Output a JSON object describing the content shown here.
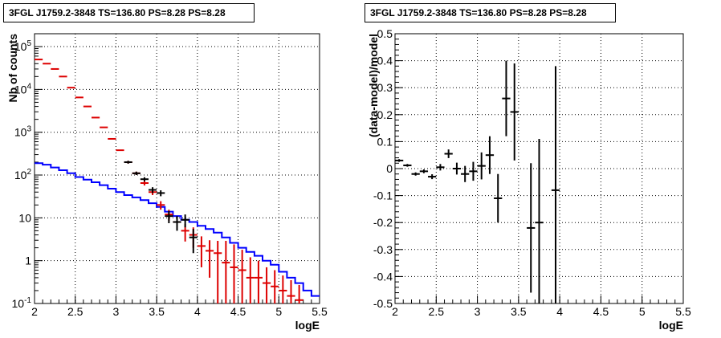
{
  "chart_data": [
    {
      "type": "line",
      "title": "3FGL J1759.2-3848 TS=136.80 PS=8.28 PS=8.28",
      "xlabel": "logE",
      "ylabel": "Nb of counts",
      "xlim": [
        2,
        5.5
      ],
      "ylim": [
        0.1,
        200000
      ],
      "yscale": "log",
      "grid": true,
      "x_ticks": [
        "2",
        "2.5",
        "3",
        "3.5",
        "4",
        "4.5",
        "5",
        "5.5"
      ],
      "y_ticks": [
        "10^{-1}",
        "1",
        "10",
        "10^{2}",
        "10^{3}",
        "10^{4}",
        "10^{5}"
      ],
      "series": [
        {
          "role": "model-step",
          "color": "#0000ff",
          "bin_edges": [
            2.0,
            2.1,
            2.2,
            2.3,
            2.4,
            2.5,
            2.6,
            2.7,
            2.8,
            2.9,
            3.0,
            3.1,
            3.2,
            3.3,
            3.4,
            3.5,
            3.6,
            3.7,
            3.8,
            3.9,
            4.0,
            4.1,
            4.2,
            4.3,
            4.4,
            4.5,
            4.6,
            4.7,
            4.8,
            4.9,
            5.0,
            5.1,
            5.2,
            5.3,
            5.4,
            5.5
          ],
          "values": [
            190,
            175,
            150,
            130,
            110,
            90,
            78,
            68,
            58,
            48,
            40,
            34,
            30,
            26,
            22,
            18,
            14,
            11,
            9,
            8,
            6.5,
            5.5,
            4.5,
            3.5,
            2.6,
            2.0,
            1.6,
            1.3,
            1.0,
            0.8,
            0.55,
            0.4,
            0.3,
            0.2,
            0.15
          ]
        },
        {
          "role": "data-red",
          "color": "#dd0000",
          "points": [
            {
              "x": 2.05,
              "y": 50000,
              "err_low": 0,
              "err_high": 0
            },
            {
              "x": 2.15,
              "y": 40000,
              "err_low": 0,
              "err_high": 0
            },
            {
              "x": 2.25,
              "y": 30000,
              "err_low": 0,
              "err_high": 0
            },
            {
              "x": 2.35,
              "y": 20000,
              "err_low": 0,
              "err_high": 0
            },
            {
              "x": 2.45,
              "y": 11000,
              "err_low": 0,
              "err_high": 0
            },
            {
              "x": 2.55,
              "y": 6500,
              "err_low": 0,
              "err_high": 0
            },
            {
              "x": 2.65,
              "y": 4000,
              "err_low": 0,
              "err_high": 0
            },
            {
              "x": 2.75,
              "y": 2200,
              "err_low": 0,
              "err_high": 0
            },
            {
              "x": 2.85,
              "y": 1300,
              "err_low": 0,
              "err_high": 0
            },
            {
              "x": 2.95,
              "y": 700,
              "err_low": 0,
              "err_high": 0
            },
            {
              "x": 3.05,
              "y": 380,
              "err_low": 0,
              "err_high": 0
            },
            {
              "x": 3.15,
              "y": 200,
              "err_low": 15,
              "err_high": 15
            },
            {
              "x": 3.25,
              "y": 110,
              "err_low": 10,
              "err_high": 10
            },
            {
              "x": 3.35,
              "y": 65,
              "err_low": 8,
              "err_high": 8
            },
            {
              "x": 3.45,
              "y": 40,
              "err_low": 6,
              "err_high": 6
            },
            {
              "x": 3.55,
              "y": 20,
              "err_low": 4.5,
              "err_high": 4.5
            },
            {
              "x": 3.65,
              "y": 12,
              "err_low": 3.5,
              "err_high": 3.5
            },
            {
              "x": 3.75,
              "y": 8,
              "err_low": 2.8,
              "err_high": 2.8
            },
            {
              "x": 3.85,
              "y": 5,
              "err_low": 2.2,
              "err_high": 2.2
            },
            {
              "x": 3.95,
              "y": 4,
              "err_low": 2,
              "err_high": 2
            },
            {
              "x": 4.05,
              "y": 2.2,
              "err_low": 1.5,
              "err_high": 1.5
            },
            {
              "x": 4.15,
              "y": 1.7,
              "err_low": 1.3,
              "err_high": 1.3
            },
            {
              "x": 4.25,
              "y": 1.5,
              "err_low": 1.4,
              "err_high": 1.4
            },
            {
              "x": 4.35,
              "y": 0.9,
              "err_low": 0.9,
              "err_high": 2.0
            },
            {
              "x": 4.45,
              "y": 0.7,
              "err_low": 0.7,
              "err_high": 1.7
            },
            {
              "x": 4.55,
              "y": 0.6,
              "err_low": 0.6,
              "err_high": 1.2
            },
            {
              "x": 4.65,
              "y": 0.4,
              "err_low": 0.4,
              "err_high": 0.8
            },
            {
              "x": 4.75,
              "y": 0.4,
              "err_low": 0.4,
              "err_high": 0.6
            },
            {
              "x": 4.85,
              "y": 0.3,
              "err_low": 0.3,
              "err_high": 0.4
            },
            {
              "x": 4.95,
              "y": 0.25,
              "err_low": 0.25,
              "err_high": 0.35
            },
            {
              "x": 5.05,
              "y": 0.2,
              "err_low": 0.2,
              "err_high": 0.25
            },
            {
              "x": 5.15,
              "y": 0.15,
              "err_low": 0.15,
              "err_high": 0.2
            },
            {
              "x": 5.25,
              "y": 0.12,
              "err_low": 0.12,
              "err_high": 0.15
            }
          ]
        },
        {
          "role": "data-black",
          "color": "#000000",
          "points": [
            {
              "x": 3.15,
              "y": 200,
              "err_low": 15,
              "err_high": 15
            },
            {
              "x": 3.25,
              "y": 110,
              "err_low": 10,
              "err_high": 10
            },
            {
              "x": 3.35,
              "y": 80,
              "err_low": 9,
              "err_high": 9
            },
            {
              "x": 3.45,
              "y": 45,
              "err_low": 7,
              "err_high": 7
            },
            {
              "x": 3.55,
              "y": 38,
              "err_low": 6,
              "err_high": 6
            },
            {
              "x": 3.65,
              "y": 11,
              "err_low": 3.5,
              "err_high": 3.5
            },
            {
              "x": 3.75,
              "y": 8,
              "err_low": 3,
              "err_high": 3
            },
            {
              "x": 3.85,
              "y": 9,
              "err_low": 3,
              "err_high": 3
            },
            {
              "x": 3.95,
              "y": 3.5,
              "err_low": 2,
              "err_high": 2
            }
          ]
        }
      ]
    },
    {
      "type": "scatter",
      "title": "3FGL J1759.2-3848 TS=136.80 PS=8.28 PS=8.28",
      "xlabel": "logE",
      "ylabel": "(data-model)/model",
      "xlim": [
        2,
        5.5
      ],
      "ylim": [
        -0.5,
        0.5
      ],
      "grid": true,
      "x_ticks": [
        "2",
        "2.5",
        "3",
        "3.5",
        "4",
        "4.5",
        "5",
        "5.5"
      ],
      "y_ticks": [
        "-0.5",
        "-0.4",
        "-0.3",
        "-0.2",
        "-0.1",
        "0",
        "0.1",
        "0.2",
        "0.3",
        "0.4",
        "0.5"
      ],
      "series": [
        {
          "role": "residuals",
          "color": "#000000",
          "points": [
            {
              "x": 2.05,
              "y": 0.03,
              "err": 0.005
            },
            {
              "x": 2.15,
              "y": 0.012,
              "err": 0.005
            },
            {
              "x": 2.25,
              "y": -0.02,
              "err": 0.006
            },
            {
              "x": 2.35,
              "y": -0.01,
              "err": 0.007
            },
            {
              "x": 2.45,
              "y": -0.03,
              "err": 0.009
            },
            {
              "x": 2.55,
              "y": 0.005,
              "err": 0.012
            },
            {
              "x": 2.65,
              "y": 0.055,
              "err": 0.016
            },
            {
              "x": 2.75,
              "y": 0.0,
              "err": 0.022
            },
            {
              "x": 2.85,
              "y": -0.02,
              "err": 0.03
            },
            {
              "x": 2.95,
              "y": -0.01,
              "err": 0.035
            },
            {
              "x": 3.05,
              "y": 0.01,
              "err": 0.05
            },
            {
              "x": 3.15,
              "y": 0.05,
              "err": 0.07
            },
            {
              "x": 3.25,
              "y": -0.11,
              "err": 0.09
            },
            {
              "x": 3.35,
              "y": 0.26,
              "err": 0.14
            },
            {
              "x": 3.45,
              "y": 0.21,
              "err": 0.18
            },
            {
              "x": 3.65,
              "y": -0.22,
              "err": 0.24
            },
            {
              "x": 3.75,
              "y": -0.2,
              "err": 0.31
            },
            {
              "x": 3.95,
              "y": -0.08,
              "err": 0.46
            }
          ]
        }
      ]
    }
  ]
}
